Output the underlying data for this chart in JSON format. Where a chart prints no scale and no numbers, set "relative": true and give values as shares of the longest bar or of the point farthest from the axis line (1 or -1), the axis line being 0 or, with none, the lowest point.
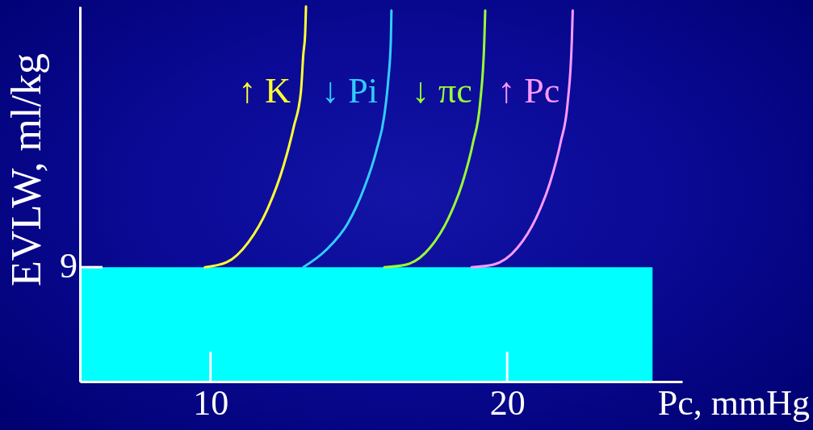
{
  "chart_data": {
    "type": "line",
    "relative": true,
    "xlabel": "Pc, mmHg",
    "ylabel": "EVLW, ml/kg",
    "xlim": [
      5.6,
      25.9
    ],
    "xticks": [
      10,
      20
    ],
    "series": [
      {
        "type": "area",
        "color": "#00ffff",
        "x": [
          5.6,
          24.9
        ],
        "values": [
          0.305,
          0.305
        ]
      },
      {
        "name": "↑ K",
        "color": "#ffff33",
        "x": [
          9.81,
          10.54,
          11.28,
          11.91,
          12.45,
          12.81,
          13.05,
          13.13,
          13.19,
          13.22
        ],
        "values": [
          0.305,
          0.318,
          0.372,
          0.458,
          0.572,
          0.68,
          0.774,
          0.873,
          0.925,
          1.0
        ]
      },
      {
        "name": "↓ Pi",
        "color": "#33ccff",
        "x": [
          13.13,
          13.9,
          14.63,
          15.18,
          15.59,
          15.86,
          15.99,
          16.08,
          16.1
        ],
        "values": [
          0.305,
          0.351,
          0.422,
          0.516,
          0.615,
          0.71,
          0.802,
          0.91,
          0.989
        ]
      },
      {
        "name": "↓ πc",
        "color": "#99ff33",
        "x": [
          15.86,
          16.6,
          17.4,
          18.03,
          18.49,
          18.85,
          19.09,
          19.23,
          19.26
        ],
        "values": [
          0.305,
          0.312,
          0.357,
          0.437,
          0.529,
          0.637,
          0.744,
          0.91,
          0.989
        ]
      },
      {
        "name": "↑ Pc",
        "color": "#ff99ff",
        "x": [
          18.8,
          19.54,
          20.35,
          20.98,
          21.44,
          21.8,
          22.04,
          22.18,
          22.21
        ],
        "values": [
          0.305,
          0.312,
          0.357,
          0.437,
          0.529,
          0.637,
          0.744,
          0.91,
          0.989
        ]
      }
    ],
    "annotations": [
      "9"
    ]
  }
}
